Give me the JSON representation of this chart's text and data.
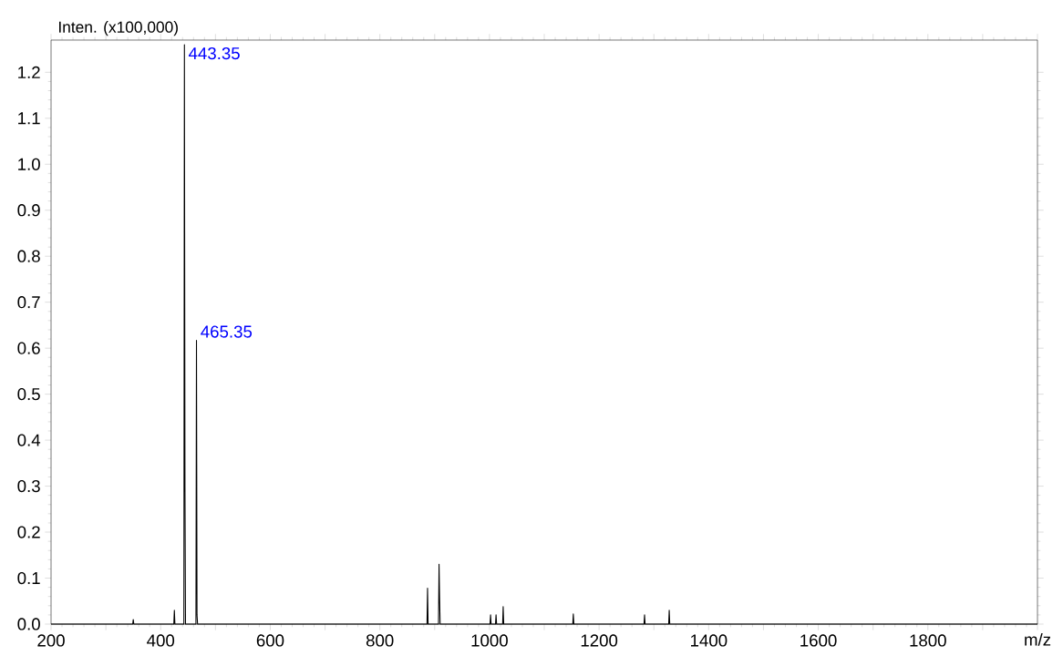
{
  "chart_data": {
    "type": "line",
    "marker": "none",
    "line_style": "solid",
    "xlabel": "m/z",
    "ylabel": "Inten. (x100,000)",
    "x": [
      200,
      349,
      350,
      351,
      424,
      425,
      426,
      442.35,
      443.35,
      444.35,
      445.35,
      464.35,
      465.35,
      466.35,
      467.35,
      886,
      887,
      888,
      907,
      908,
      909,
      910,
      1001,
      1002,
      1003,
      1011,
      1012,
      1013,
      1024,
      1025,
      1026,
      1152,
      1153,
      1154,
      1282,
      1283,
      1284,
      1327,
      1328,
      1329,
      2000
    ],
    "values": [
      0,
      0,
      0.01,
      0,
      0,
      0.03,
      0,
      0,
      1.26,
      0.3,
      0,
      0,
      0.617,
      0.02,
      0,
      0,
      0.078,
      0,
      0,
      0.13,
      0.055,
      0,
      0,
      0.02,
      0,
      0,
      0.02,
      0,
      0,
      0.038,
      0,
      0,
      0.022,
      0,
      0,
      0.02,
      0,
      0,
      0.03,
      0,
      0
    ],
    "color": "#000000",
    "xlim": [
      200,
      2000
    ],
    "ylim": [
      0,
      1.27
    ],
    "xticks": [
      200,
      {
        "value": 300,
        "label": null
      },
      400,
      {
        "value": 500,
        "label": null
      },
      600,
      {
        "value": 700,
        "label": null
      },
      800,
      {
        "value": 900,
        "label": null
      },
      1000,
      {
        "value": 1100,
        "label": null
      },
      1200,
      {
        "value": 1300,
        "label": null
      },
      1400,
      {
        "value": 1500,
        "label": null
      },
      1600,
      {
        "value": 1700,
        "label": null
      },
      1800,
      {
        "value": 1900,
        "label": null
      },
      {
        "value": 2000,
        "label": null
      }
    ],
    "yticks": [
      {
        "value": 0,
        "label": "0.0"
      },
      0.1,
      0.2,
      0.3,
      0.4,
      0.5,
      0.6,
      0.7,
      0.8,
      0.9,
      {
        "value": 1.0,
        "label": "1.0"
      },
      1.1,
      1.2
    ],
    "annotations": [
      {
        "text": "443.35",
        "x": 443.35,
        "y": 1.26
      },
      {
        "text": "465.35",
        "x": 465.35,
        "y": 0.617
      }
    ],
    "grid": false
  }
}
